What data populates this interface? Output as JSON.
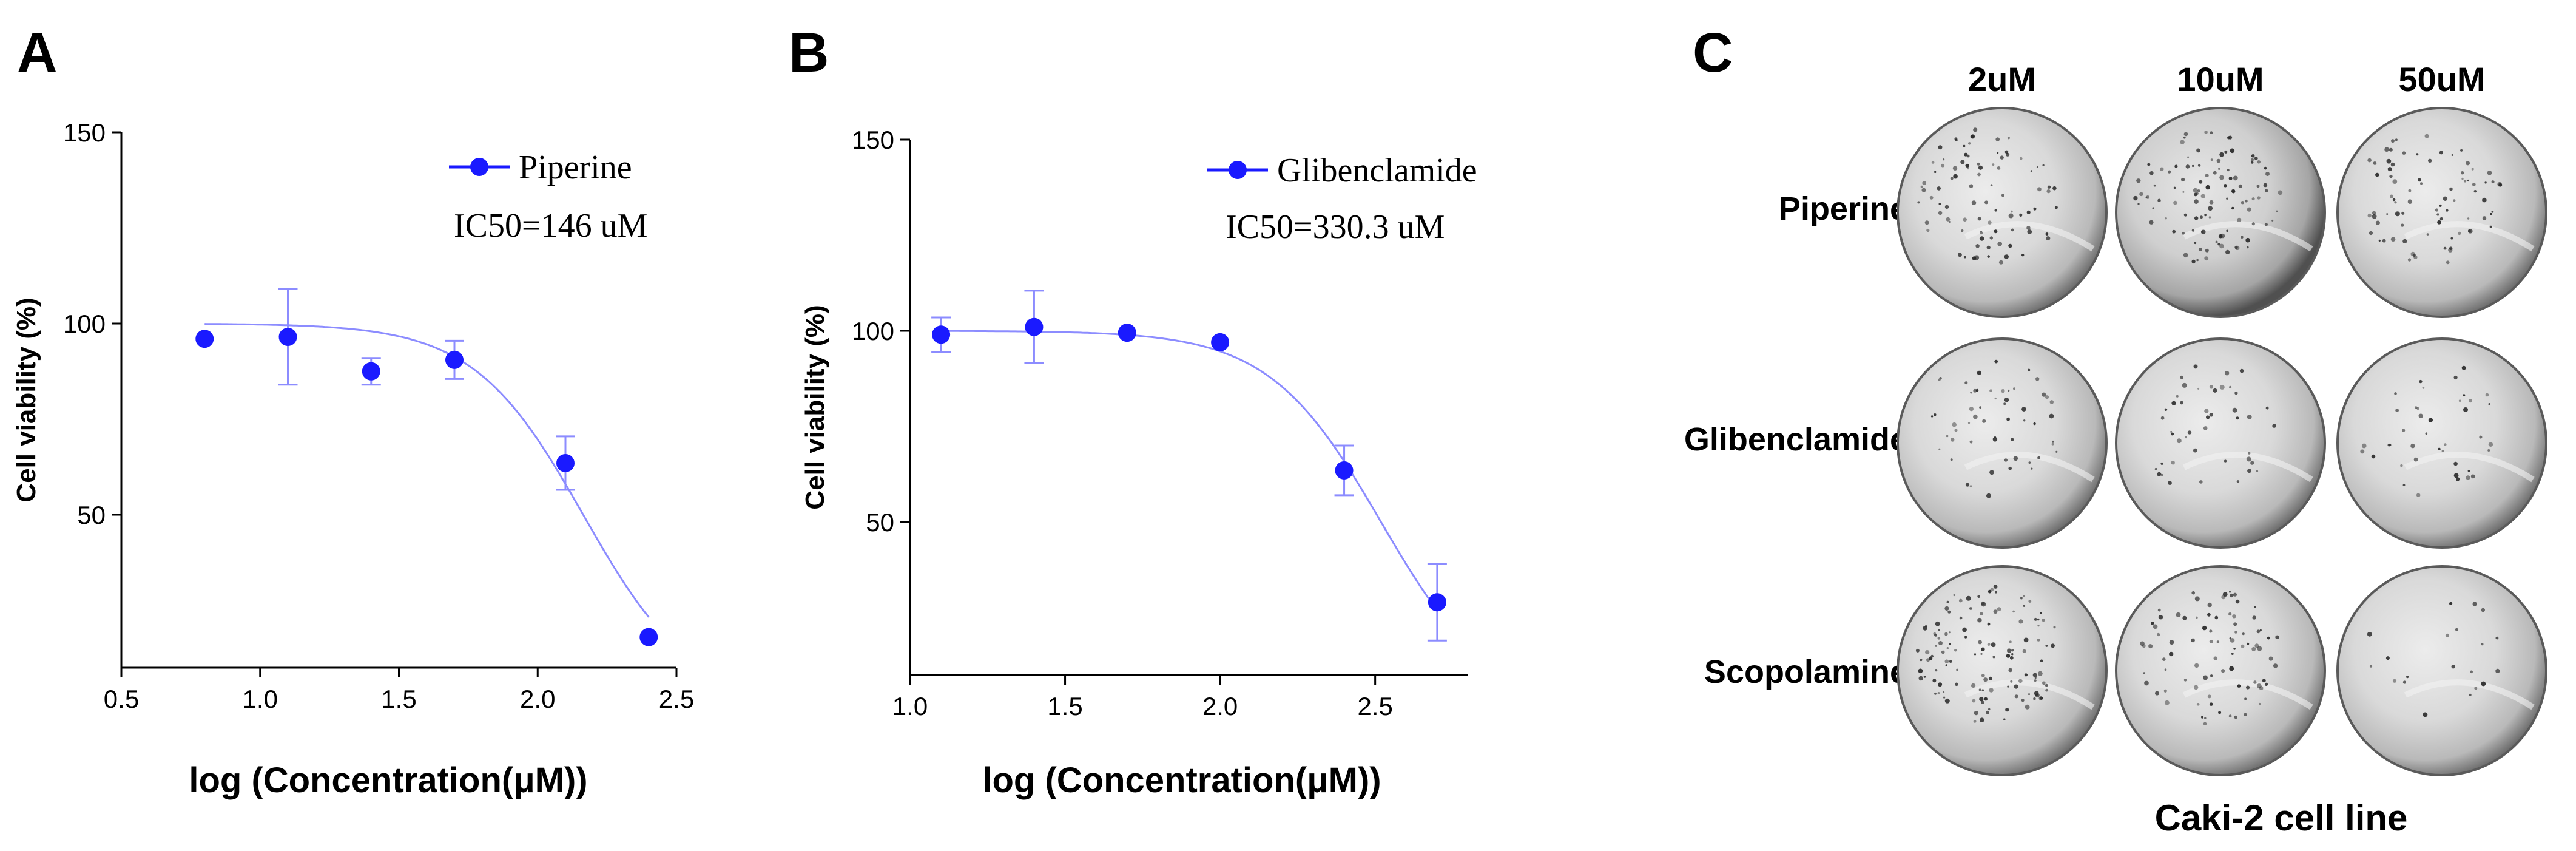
{
  "chart_data": [
    {
      "panel": "A",
      "type": "scatter",
      "ylabel": "Cell viability (%)",
      "xlabel": "log (Concentration(μM))",
      "xlim": [
        0.5,
        2.5
      ],
      "ylim": [
        10,
        150
      ],
      "xticks": [
        0.5,
        1.0,
        1.5,
        2.0,
        2.5
      ],
      "xtick_labels": [
        "0.5",
        "1.0",
        "1.5",
        "2.0",
        "2.5"
      ],
      "yticks": [
        50,
        100,
        150
      ],
      "ytick_labels": [
        "50",
        "100",
        "150"
      ],
      "series": [
        {
          "name": "Piperine",
          "x": [
            0.8,
            1.1,
            1.4,
            1.7,
            2.1,
            2.4
          ],
          "y": [
            96,
            96.5,
            87.5,
            90.5,
            63.5,
            18
          ],
          "error": [
            0,
            12.5,
            3.5,
            5,
            7,
            0
          ]
        }
      ],
      "annotation": "IC50=146 uM",
      "fit": {
        "top": 100,
        "bottom": 0,
        "logIC50": 2.164,
        "hill": 2.2
      },
      "color": "#1a1aff",
      "fit_color": "#8c8cff"
    },
    {
      "panel": "B",
      "type": "scatter",
      "ylabel": "Cell viability (%)",
      "xlabel": "log (Concentration(μM))",
      "xlim": [
        1.0,
        2.8
      ],
      "ylim": [
        10,
        150
      ],
      "xticks": [
        1.0,
        1.5,
        2.0,
        2.5
      ],
      "xtick_labels": [
        "1.0",
        "1.5",
        "2.0",
        "2.5"
      ],
      "yticks": [
        50,
        100,
        150
      ],
      "ytick_labels": [
        "50",
        "100",
        "150"
      ],
      "series": [
        {
          "name": "Glibenclamide",
          "x": [
            1.1,
            1.4,
            1.7,
            2.0,
            2.4,
            2.7
          ],
          "y": [
            99,
            101,
            99.5,
            97,
            63.5,
            29
          ],
          "error": [
            4.5,
            9.5,
            0,
            0,
            6.5,
            10
          ]
        }
      ],
      "annotation": "IC50=330.3 uM",
      "fit": {
        "top": 100,
        "bottom": 0,
        "logIC50": 2.519,
        "hill": 2.4
      },
      "color": "#1a1aff",
      "fit_color": "#8c8cff"
    }
  ],
  "panelC": {
    "letter": "C",
    "columns": [
      "2uM",
      "10uM",
      "50uM"
    ],
    "rows": [
      "Piperine",
      "Glibenclamide",
      "Scopolamine"
    ],
    "caption": "Caki-2 cell line"
  }
}
